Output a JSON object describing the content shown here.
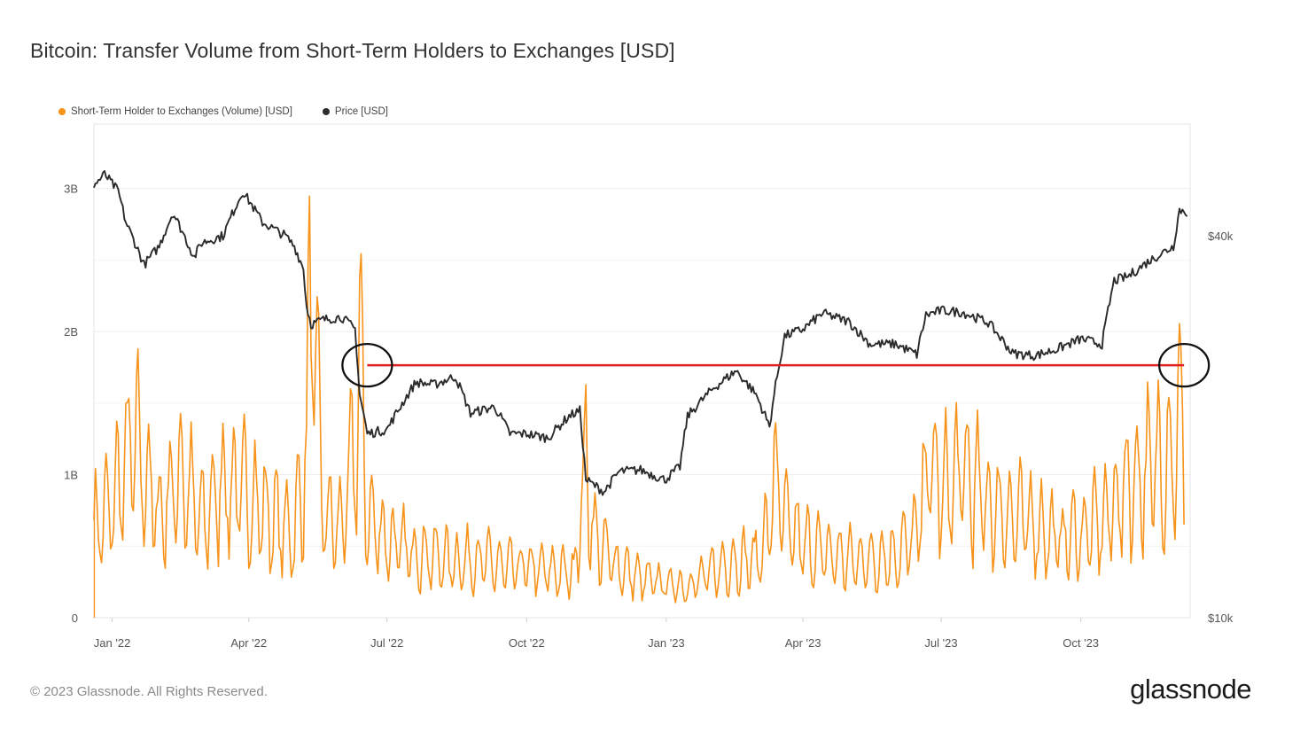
{
  "title": "Bitcoin: Transfer Volume from Short-Term Holders to Exchanges [USD]",
  "legend": [
    {
      "label": "Short-Term Holder to Exchanges (Volume) [USD]",
      "color": "#f7931a"
    },
    {
      "label": "Price [USD]",
      "color": "#2b2b2b"
    }
  ],
  "footer": {
    "copyright": "© 2023 Glassnode. All Rights Reserved.",
    "logo": "glassnode"
  },
  "chart_data": {
    "type": "line",
    "title": "Bitcoin: Transfer Volume from Short-Term Holders to Exchanges [USD]",
    "x_range": [
      "2021-12-20",
      "2023-12-12"
    ],
    "x_ticks": [
      {
        "label": "Jan '22",
        "date": "2022-01-01"
      },
      {
        "label": "Apr '22",
        "date": "2022-04-01"
      },
      {
        "label": "Jul '22",
        "date": "2022-07-01"
      },
      {
        "label": "Oct '22",
        "date": "2022-10-01"
      },
      {
        "label": "Jan '23",
        "date": "2023-01-01"
      },
      {
        "label": "Apr '23",
        "date": "2023-04-01"
      },
      {
        "label": "Jul '23",
        "date": "2023-07-01"
      },
      {
        "label": "Oct '23",
        "date": "2023-10-01"
      }
    ],
    "y_left": {
      "ticks": [
        {
          "label": "0",
          "value": 0
        },
        {
          "label": "1B",
          "value": 1000000000
        },
        {
          "label": "2B",
          "value": 2000000000
        },
        {
          "label": "3B",
          "value": 3000000000
        }
      ],
      "ylim": [
        0,
        3450000000
      ]
    },
    "y_right": {
      "scale": "log",
      "ticks": [
        {
          "label": "$10k",
          "value": 10000
        },
        {
          "label": "$40k",
          "value": 40000
        }
      ],
      "ylim": [
        10000,
        60000
      ]
    },
    "grid": true,
    "legend_position": "top-left",
    "series": [
      {
        "name": "Short-Term Holder to Exchanges (Volume) [USD]",
        "axis": "left",
        "color": "#f7931a",
        "x": [
          "2021-12-20",
          "2022-01-01",
          "2022-01-15",
          "2022-02-01",
          "2022-02-15",
          "2022-03-01",
          "2022-03-15",
          "2022-04-01",
          "2022-04-15",
          "2022-05-01",
          "2022-05-09",
          "2022-05-12",
          "2022-05-20",
          "2022-06-01",
          "2022-06-10",
          "2022-06-13",
          "2022-06-18",
          "2022-07-01",
          "2022-07-15",
          "2022-08-01",
          "2022-08-15",
          "2022-09-01",
          "2022-09-15",
          "2022-10-01",
          "2022-10-15",
          "2022-11-01",
          "2022-11-09",
          "2022-11-15",
          "2022-12-01",
          "2022-12-15",
          "2023-01-01",
          "2023-01-15",
          "2023-02-01",
          "2023-02-15",
          "2023-03-01",
          "2023-03-10",
          "2023-03-13",
          "2023-03-20",
          "2023-04-01",
          "2023-04-15",
          "2023-05-01",
          "2023-05-15",
          "2023-06-01",
          "2023-06-15",
          "2023-06-23",
          "2023-07-01",
          "2023-07-15",
          "2023-08-01",
          "2023-08-17",
          "2023-09-01",
          "2023-09-15",
          "2023-10-01",
          "2023-10-15",
          "2023-10-23",
          "2023-11-01",
          "2023-11-15",
          "2023-12-01",
          "2023-12-08"
        ],
        "values": [
          800000000,
          1000000000,
          1600000000,
          900000000,
          1300000000,
          850000000,
          1200000000,
          1100000000,
          900000000,
          750000000,
          1500000000,
          3100000000,
          900000000,
          800000000,
          1500000000,
          2350000000,
          900000000,
          700000000,
          600000000,
          550000000,
          500000000,
          520000000,
          450000000,
          450000000,
          420000000,
          400000000,
          1400000000,
          700000000,
          450000000,
          350000000,
          300000000,
          280000000,
          420000000,
          500000000,
          520000000,
          800000000,
          1300000000,
          850000000,
          650000000,
          580000000,
          520000000,
          520000000,
          560000000,
          750000000,
          1400000000,
          1100000000,
          1300000000,
          1000000000,
          900000000,
          850000000,
          700000000,
          750000000,
          850000000,
          1000000000,
          1200000000,
          1300000000,
          1500000000,
          1800000000
        ]
      },
      {
        "name": "Price [USD]",
        "axis": "right",
        "color": "#2b2b2b",
        "x": [
          "2021-12-20",
          "2021-12-27",
          "2022-01-05",
          "2022-01-10",
          "2022-01-22",
          "2022-02-01",
          "2022-02-10",
          "2022-02-24",
          "2022-03-01",
          "2022-03-15",
          "2022-03-28",
          "2022-04-10",
          "2022-04-25",
          "2022-05-01",
          "2022-05-07",
          "2022-05-09",
          "2022-05-12",
          "2022-05-20",
          "2022-06-01",
          "2022-06-10",
          "2022-06-13",
          "2022-06-18",
          "2022-07-01",
          "2022-07-20",
          "2022-08-01",
          "2022-08-15",
          "2022-08-25",
          "2022-09-10",
          "2022-09-20",
          "2022-10-01",
          "2022-10-15",
          "2022-10-29",
          "2022-11-05",
          "2022-11-09",
          "2022-11-21",
          "2022-12-01",
          "2022-12-15",
          "2022-12-31",
          "2023-01-10",
          "2023-01-15",
          "2023-02-01",
          "2023-02-16",
          "2023-03-01",
          "2023-03-10",
          "2023-03-13",
          "2023-03-20",
          "2023-04-01",
          "2023-04-14",
          "2023-05-01",
          "2023-05-15",
          "2023-06-01",
          "2023-06-15",
          "2023-06-21",
          "2023-07-01",
          "2023-07-15",
          "2023-08-01",
          "2023-08-17",
          "2023-09-01",
          "2023-09-15",
          "2023-10-01",
          "2023-10-15",
          "2023-10-23",
          "2023-11-01",
          "2023-11-15",
          "2023-12-01",
          "2023-12-05",
          "2023-12-10"
        ],
        "values": [
          48000,
          50000,
          47000,
          42000,
          36000,
          38500,
          43500,
          37000,
          39000,
          40000,
          47000,
          42000,
          40000,
          38500,
          35500,
          31000,
          29000,
          29500,
          29800,
          28500,
          22500,
          19500,
          19800,
          23500,
          23300,
          24000,
          21000,
          21500,
          19500,
          19500,
          19200,
          20800,
          21200,
          16500,
          15800,
          17000,
          17100,
          16500,
          17300,
          20800,
          23000,
          24500,
          22500,
          20000,
          22500,
          27800,
          28500,
          30200,
          29300,
          27000,
          27000,
          26000,
          30000,
          30500,
          30300,
          29200,
          26100,
          25900,
          26500,
          27500,
          27000,
          34000,
          34500,
          36500,
          38500,
          44000,
          43500
        ]
      }
    ],
    "annotations": {
      "reference_line": {
        "color": "#e02020",
        "from": "2022-06-18",
        "to": "2023-12-08",
        "price_level": 25000
      },
      "circles": [
        {
          "date": "2022-06-18",
          "color": "#111111"
        },
        {
          "date": "2023-12-08",
          "color": "#111111"
        }
      ]
    }
  }
}
